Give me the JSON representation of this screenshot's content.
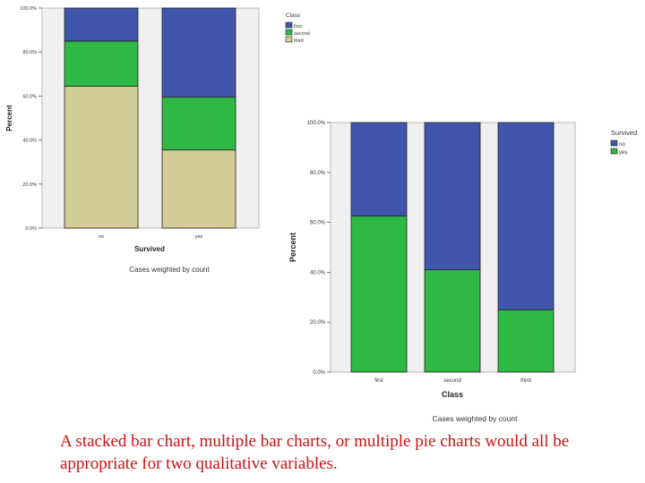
{
  "colors": {
    "first": "#3f56ac",
    "second": "#2eb844",
    "third": "#d3cc96",
    "no": "#3f56ac",
    "yes": "#2eb844",
    "plot_bg": "#f0f0f0",
    "caption": "#cc1111"
  },
  "chart_data": [
    {
      "type": "bar",
      "stacked": true,
      "percent": true,
      "categories": [
        "no",
        "yes"
      ],
      "series": [
        {
          "name": "third",
          "colorKey": "third",
          "values": [
            64.5,
            35.5
          ]
        },
        {
          "name": "second",
          "colorKey": "second",
          "values": [
            20.5,
            24.0
          ]
        },
        {
          "name": "first",
          "colorKey": "first",
          "values": [
            15.0,
            40.5
          ]
        }
      ],
      "ylabel": "Percent",
      "xlabel": "Survived",
      "ylim": [
        0,
        100
      ],
      "yticks": [
        "0.0%",
        "20.0%",
        "40.0%",
        "60.0%",
        "80.0%",
        "100.0%"
      ],
      "legend": {
        "title": "Class",
        "entries": [
          "first",
          "second",
          "third"
        ]
      },
      "footnote": "Cases weighted by count",
      "grid": false
    },
    {
      "type": "bar",
      "stacked": true,
      "percent": true,
      "categories": [
        "first",
        "second",
        "third"
      ],
      "series": [
        {
          "name": "yes",
          "colorKey": "yes",
          "values": [
            62.5,
            41.0,
            25.0
          ]
        },
        {
          "name": "no",
          "colorKey": "no",
          "values": [
            37.5,
            59.0,
            75.0
          ]
        }
      ],
      "ylabel": "Percent",
      "xlabel": "Class",
      "ylim": [
        0,
        100
      ],
      "yticks": [
        "0.0%",
        "20.0%",
        "40.0%",
        "60.0%",
        "80.0%",
        "100.0%"
      ],
      "legend": {
        "title": "Survived",
        "entries": [
          "no",
          "yes"
        ]
      },
      "footnote": "Cases weighted by count",
      "grid": false
    }
  ],
  "caption": "A stacked bar chart, multiple bar charts, or multiple pie charts would all be appropriate for two qualitative variables."
}
